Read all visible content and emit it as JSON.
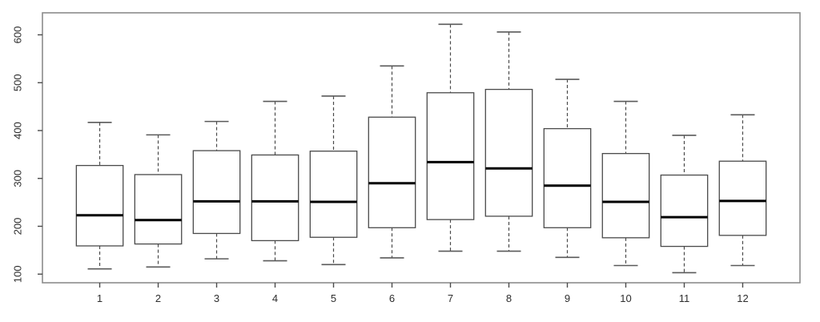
{
  "chart_data": {
    "type": "boxplot",
    "title": "",
    "xlabel": "",
    "ylabel": "",
    "categories": [
      "1",
      "2",
      "3",
      "4",
      "5",
      "6",
      "7",
      "8",
      "9",
      "10",
      "11",
      "12"
    ],
    "stats": [
      {
        "category": "1",
        "whisker_low": 111,
        "q1": 159,
        "median": 223,
        "q3": 327,
        "whisker_high": 417
      },
      {
        "category": "2",
        "whisker_low": 115,
        "q1": 163,
        "median": 213,
        "q3": 308,
        "whisker_high": 391
      },
      {
        "category": "3",
        "whisker_low": 132,
        "q1": 185,
        "median": 252,
        "q3": 358,
        "whisker_high": 419
      },
      {
        "category": "4",
        "whisker_low": 128,
        "q1": 170,
        "median": 252,
        "q3": 349,
        "whisker_high": 461
      },
      {
        "category": "5",
        "whisker_low": 120,
        "q1": 177,
        "median": 251,
        "q3": 357,
        "whisker_high": 472
      },
      {
        "category": "6",
        "whisker_low": 134,
        "q1": 197,
        "median": 290,
        "q3": 428,
        "whisker_high": 535
      },
      {
        "category": "7",
        "whisker_low": 148,
        "q1": 214,
        "median": 334,
        "q3": 479,
        "whisker_high": 622
      },
      {
        "category": "8",
        "whisker_low": 148,
        "q1": 221,
        "median": 321,
        "q3": 486,
        "whisker_high": 606
      },
      {
        "category": "9",
        "whisker_low": 135,
        "q1": 197,
        "median": 285,
        "q3": 404,
        "whisker_high": 507
      },
      {
        "category": "10",
        "whisker_low": 118,
        "q1": 176,
        "median": 251,
        "q3": 352,
        "whisker_high": 461
      },
      {
        "category": "11",
        "whisker_low": 103,
        "q1": 158,
        "median": 219,
        "q3": 307,
        "whisker_high": 390
      },
      {
        "category": "12",
        "whisker_low": 118,
        "q1": 181,
        "median": 253,
        "q3": 336,
        "whisker_high": 433
      }
    ],
    "outliers": [],
    "y_ticks": [
      100,
      200,
      300,
      400,
      500,
      600
    ],
    "ylim": [
      82,
      646
    ],
    "grid": false,
    "legend": null
  },
  "style": {
    "background": "#ffffff",
    "frame_color": "#8c8c8c",
    "box_border_color": "#4a4a4a",
    "box_fill": "#ffffff",
    "median_color": "#000000",
    "whisker_color": "#4a4a4a",
    "cap_color": "#5a5a5a",
    "tick_color": "#4a4a4a",
    "tick_label_color": "#2e2e2e"
  }
}
